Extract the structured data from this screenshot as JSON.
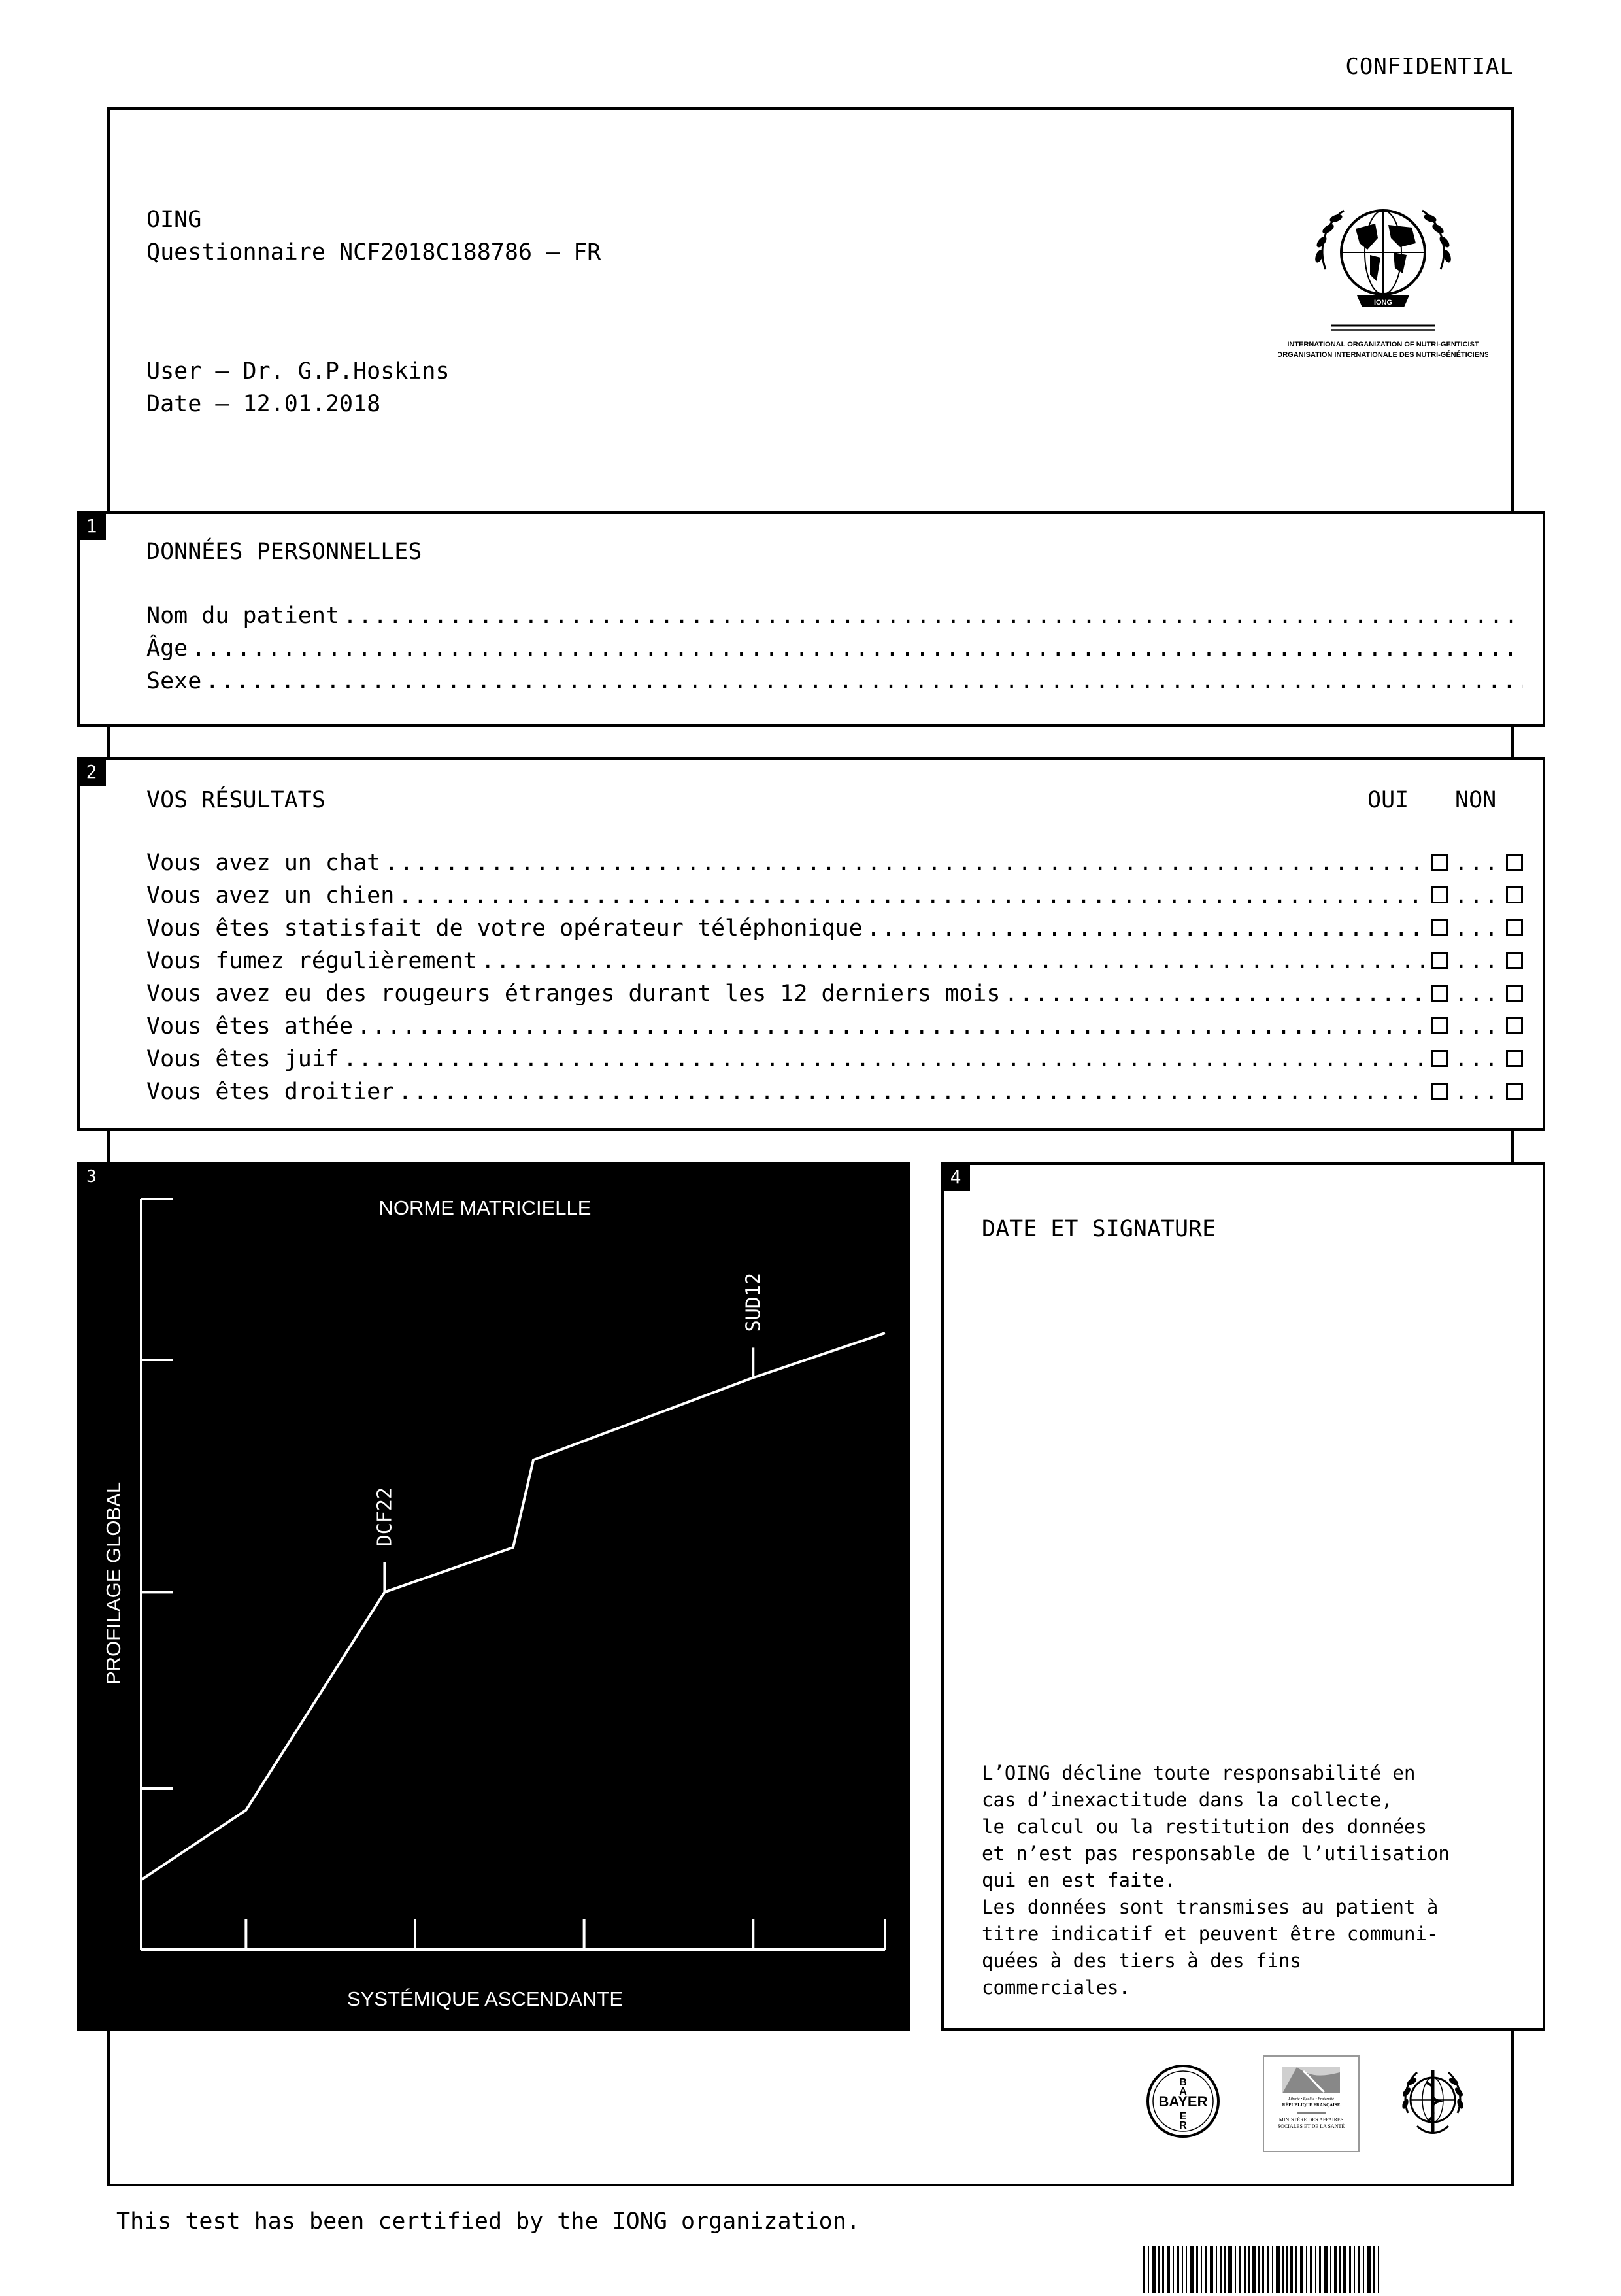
{
  "confidential": "CONFIDENTIAL",
  "header": {
    "org": "OING",
    "questionnaire": "Questionnaire NCF2018C188786 – FR",
    "user": "User – Dr. G.P.Hoskins",
    "date": "Date – 12.01.2018"
  },
  "logo": {
    "line1": "INTERNATIONAL ORGANIZATION OF NUTRI-GENTICIST",
    "line2": "ORGANISATION INTERNATIONALE DES NUTRI-GÉNÉTICIENS",
    "emblem": "IONG"
  },
  "section1": {
    "number": "1",
    "title": "DONNÉES PERSONNELLES",
    "fields": [
      "Nom du patient",
      "Âge",
      "Sexe"
    ]
  },
  "section2": {
    "number": "2",
    "title": "VOS RÉSULTATS",
    "yes_label": "OUI",
    "no_label": "NON",
    "questions": [
      "Vous avez un chat",
      "Vous avez un chien",
      "Vous êtes statisfait de votre opérateur téléphonique",
      "Vous fumez régulièrement",
      "Vous avez eu des rougeurs étranges durant les 12 derniers mois",
      "Vous êtes athée",
      "Vous êtes juif",
      "Vous êtes droitier"
    ],
    "separator": "..."
  },
  "section3": {
    "number": "3",
    "chart_data": {
      "type": "line",
      "title": "NORME MATRICIELLE",
      "xlabel": "SYSTÉMIQUE ASCENDANTE",
      "ylabel": "PROFILAGE GLOBAL",
      "xlim": [
        0,
        4.4
      ],
      "ylim": [
        0,
        4.2
      ],
      "series": [
        {
          "x": [
            0,
            0.62,
            1.44,
            2.2,
            2.32,
            3.62,
            4.4
          ],
          "y": [
            0.39,
            0.78,
            2.0,
            2.25,
            2.74,
            3.2,
            3.45
          ]
        }
      ],
      "annotations": [
        {
          "label": "DCF22",
          "x": 1.44,
          "y": 2.0
        },
        {
          "label": "SUD12",
          "x": 3.62,
          "y": 3.2
        }
      ]
    }
  },
  "section4": {
    "number": "4",
    "title": "DATE ET SIGNATURE",
    "disclaimer": "L’OING décline toute responsabilité en\ncas d’inexactitude dans la collecte,\nle calcul ou la restitution des données\net n’est pas responsable de l’utilisation\nqui en est faite.\nLes données sont transmises au patient à\ntitre indicatif et peuvent être communi-\nquées à des tiers à des fins\ncommerciales."
  },
  "partner_logos": {
    "bayer": "BAYER",
    "ministry": {
      "motto": "Liberté • Égalité • Fraternité",
      "republic": "RÉPUBLIQUE FRANÇAISE",
      "name": "MINISTÈRE DES AFFAIRES SOCIALES ET DE LA SANTÉ"
    },
    "who": "WHO emblem"
  },
  "footer": "This test has been certified by the IONG organization."
}
